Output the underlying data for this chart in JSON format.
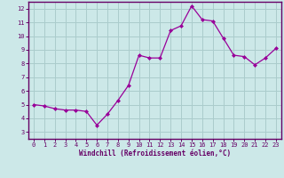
{
  "x": [
    0,
    1,
    2,
    3,
    4,
    5,
    6,
    7,
    8,
    9,
    10,
    11,
    12,
    13,
    14,
    15,
    16,
    17,
    18,
    19,
    20,
    21,
    22,
    23
  ],
  "y": [
    5.0,
    4.9,
    4.7,
    4.6,
    4.6,
    4.5,
    3.5,
    4.3,
    5.3,
    6.4,
    8.6,
    8.4,
    8.4,
    10.4,
    10.75,
    12.2,
    11.2,
    11.1,
    9.85,
    8.6,
    8.5,
    7.9,
    8.4,
    9.1
  ],
  "line_color": "#990099",
  "marker": "D",
  "marker_size": 2,
  "bg_color": "#cce8e8",
  "grid_color": "#aacccc",
  "xlabel": "Windchill (Refroidissement éolien,°C)",
  "xlim": [
    -0.5,
    23.5
  ],
  "ylim": [
    2.5,
    12.5
  ],
  "yticks": [
    3,
    4,
    5,
    6,
    7,
    8,
    9,
    10,
    11,
    12
  ],
  "xtick_labels": [
    "0",
    "1",
    "2",
    "3",
    "4",
    "5",
    "6",
    "7",
    "8",
    "9",
    "10",
    "11",
    "12",
    "13",
    "14",
    "15",
    "16",
    "17",
    "18",
    "19",
    "20",
    "21",
    "22",
    "23"
  ],
  "axis_color": "#660066",
  "tick_color": "#660066",
  "label_color": "#660066",
  "tick_fontsize": 5.0,
  "label_fontsize": 5.5
}
